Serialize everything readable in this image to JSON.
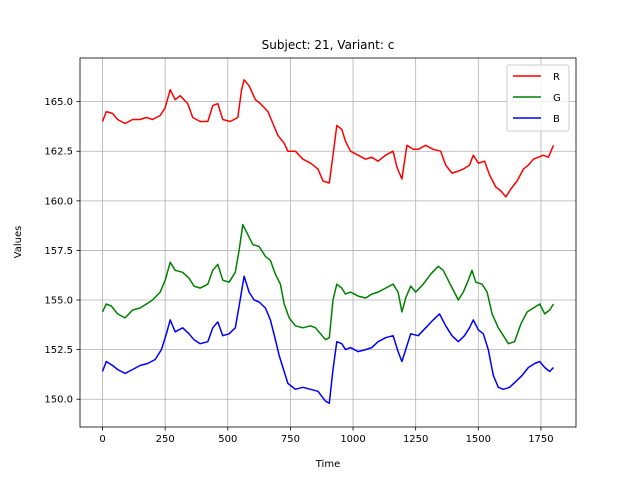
{
  "chart_data": {
    "type": "line",
    "title": "Subject: 21, Variant: c",
    "xlabel": "Time",
    "ylabel": "Values",
    "xlim": [
      -90,
      1890
    ],
    "ylim": [
      148.6,
      167.2
    ],
    "xticks": [
      0,
      250,
      500,
      750,
      1000,
      1250,
      1500,
      1750
    ],
    "yticks": [
      150.0,
      152.5,
      155.0,
      157.5,
      160.0,
      162.5,
      165.0
    ],
    "ytick_labels": [
      "150.0",
      "152.5",
      "155.0",
      "157.5",
      "160.0",
      "162.5",
      "165.0"
    ],
    "grid": true,
    "legend_position": "top-right",
    "series": [
      {
        "name": "R",
        "color": "#ff0000",
        "points": [
          [
            0,
            164.0
          ],
          [
            15,
            164.5
          ],
          [
            40,
            164.4
          ],
          [
            60,
            164.1
          ],
          [
            90,
            163.9
          ],
          [
            120,
            164.1
          ],
          [
            150,
            164.1
          ],
          [
            175,
            164.2
          ],
          [
            200,
            164.1
          ],
          [
            230,
            164.3
          ],
          [
            250,
            164.7
          ],
          [
            270,
            165.6
          ],
          [
            290,
            165.1
          ],
          [
            310,
            165.3
          ],
          [
            340,
            164.9
          ],
          [
            360,
            164.2
          ],
          [
            390,
            164.0
          ],
          [
            420,
            164.0
          ],
          [
            440,
            164.8
          ],
          [
            460,
            164.9
          ],
          [
            480,
            164.1
          ],
          [
            510,
            164.0
          ],
          [
            540,
            164.2
          ],
          [
            555,
            165.6
          ],
          [
            565,
            166.1
          ],
          [
            585,
            165.8
          ],
          [
            610,
            165.1
          ],
          [
            630,
            164.9
          ],
          [
            660,
            164.5
          ],
          [
            680,
            163.9
          ],
          [
            700,
            163.3
          ],
          [
            725,
            162.9
          ],
          [
            740,
            162.5
          ],
          [
            770,
            162.5
          ],
          [
            800,
            162.1
          ],
          [
            830,
            161.9
          ],
          [
            860,
            161.6
          ],
          [
            880,
            161.0
          ],
          [
            905,
            160.9
          ],
          [
            920,
            162.3
          ],
          [
            935,
            163.8
          ],
          [
            955,
            163.6
          ],
          [
            970,
            163.0
          ],
          [
            990,
            162.5
          ],
          [
            1020,
            162.3
          ],
          [
            1050,
            162.1
          ],
          [
            1075,
            162.2
          ],
          [
            1100,
            162.0
          ],
          [
            1130,
            162.3
          ],
          [
            1160,
            162.5
          ],
          [
            1175,
            161.7
          ],
          [
            1195,
            161.1
          ],
          [
            1215,
            162.8
          ],
          [
            1240,
            162.6
          ],
          [
            1260,
            162.6
          ],
          [
            1290,
            162.8
          ],
          [
            1320,
            162.6
          ],
          [
            1350,
            162.5
          ],
          [
            1370,
            161.8
          ],
          [
            1395,
            161.4
          ],
          [
            1420,
            161.5
          ],
          [
            1440,
            161.6
          ],
          [
            1465,
            161.8
          ],
          [
            1480,
            162.3
          ],
          [
            1500,
            161.9
          ],
          [
            1525,
            162.0
          ],
          [
            1545,
            161.3
          ],
          [
            1570,
            160.7
          ],
          [
            1590,
            160.5
          ],
          [
            1610,
            160.2
          ],
          [
            1630,
            160.6
          ],
          [
            1655,
            161.0
          ],
          [
            1680,
            161.6
          ],
          [
            1700,
            161.8
          ],
          [
            1720,
            162.1
          ],
          [
            1740,
            162.2
          ],
          [
            1760,
            162.3
          ],
          [
            1780,
            162.2
          ],
          [
            1800,
            162.8
          ]
        ]
      },
      {
        "name": "G",
        "color": "#008000",
        "points": [
          [
            0,
            154.4
          ],
          [
            15,
            154.8
          ],
          [
            35,
            154.7
          ],
          [
            60,
            154.3
          ],
          [
            90,
            154.1
          ],
          [
            120,
            154.5
          ],
          [
            150,
            154.6
          ],
          [
            175,
            154.8
          ],
          [
            200,
            155.0
          ],
          [
            230,
            155.4
          ],
          [
            250,
            156.0
          ],
          [
            270,
            156.9
          ],
          [
            290,
            156.5
          ],
          [
            320,
            156.4
          ],
          [
            345,
            156.1
          ],
          [
            365,
            155.7
          ],
          [
            390,
            155.6
          ],
          [
            420,
            155.8
          ],
          [
            440,
            156.5
          ],
          [
            460,
            156.8
          ],
          [
            480,
            156.0
          ],
          [
            505,
            155.9
          ],
          [
            530,
            156.4
          ],
          [
            545,
            157.5
          ],
          [
            560,
            158.8
          ],
          [
            580,
            158.3
          ],
          [
            600,
            157.8
          ],
          [
            625,
            157.7
          ],
          [
            650,
            157.2
          ],
          [
            670,
            157.0
          ],
          [
            690,
            156.3
          ],
          [
            710,
            155.8
          ],
          [
            725,
            154.8
          ],
          [
            745,
            154.1
          ],
          [
            770,
            153.7
          ],
          [
            800,
            153.6
          ],
          [
            830,
            153.7
          ],
          [
            850,
            153.6
          ],
          [
            870,
            153.3
          ],
          [
            890,
            153.0
          ],
          [
            905,
            153.1
          ],
          [
            920,
            155.0
          ],
          [
            935,
            155.8
          ],
          [
            955,
            155.6
          ],
          [
            970,
            155.3
          ],
          [
            990,
            155.4
          ],
          [
            1020,
            155.2
          ],
          [
            1050,
            155.1
          ],
          [
            1075,
            155.3
          ],
          [
            1100,
            155.4
          ],
          [
            1130,
            155.6
          ],
          [
            1160,
            155.8
          ],
          [
            1180,
            155.4
          ],
          [
            1195,
            154.4
          ],
          [
            1210,
            155.1
          ],
          [
            1230,
            155.7
          ],
          [
            1250,
            155.4
          ],
          [
            1280,
            155.8
          ],
          [
            1310,
            156.3
          ],
          [
            1340,
            156.7
          ],
          [
            1360,
            156.5
          ],
          [
            1380,
            156.0
          ],
          [
            1400,
            155.5
          ],
          [
            1420,
            155.0
          ],
          [
            1440,
            155.4
          ],
          [
            1460,
            156.0
          ],
          [
            1475,
            156.5
          ],
          [
            1490,
            155.9
          ],
          [
            1515,
            155.8
          ],
          [
            1535,
            155.4
          ],
          [
            1555,
            154.3
          ],
          [
            1580,
            153.6
          ],
          [
            1600,
            153.2
          ],
          [
            1620,
            152.8
          ],
          [
            1645,
            152.9
          ],
          [
            1670,
            153.8
          ],
          [
            1695,
            154.4
          ],
          [
            1720,
            154.6
          ],
          [
            1745,
            154.8
          ],
          [
            1765,
            154.3
          ],
          [
            1785,
            154.5
          ],
          [
            1800,
            154.8
          ]
        ]
      },
      {
        "name": "B",
        "color": "#0000ff",
        "points": [
          [
            0,
            151.4
          ],
          [
            15,
            151.9
          ],
          [
            40,
            151.7
          ],
          [
            60,
            151.5
          ],
          [
            90,
            151.3
          ],
          [
            120,
            151.5
          ],
          [
            150,
            151.7
          ],
          [
            180,
            151.8
          ],
          [
            210,
            152.0
          ],
          [
            235,
            152.5
          ],
          [
            255,
            153.3
          ],
          [
            270,
            154.0
          ],
          [
            290,
            153.4
          ],
          [
            320,
            153.6
          ],
          [
            345,
            153.3
          ],
          [
            365,
            153.0
          ],
          [
            390,
            152.8
          ],
          [
            420,
            152.9
          ],
          [
            440,
            153.6
          ],
          [
            460,
            153.9
          ],
          [
            480,
            153.2
          ],
          [
            505,
            153.3
          ],
          [
            530,
            153.6
          ],
          [
            548,
            154.9
          ],
          [
            565,
            156.2
          ],
          [
            585,
            155.4
          ],
          [
            605,
            155.0
          ],
          [
            625,
            154.9
          ],
          [
            650,
            154.6
          ],
          [
            670,
            154.0
          ],
          [
            690,
            153.0
          ],
          [
            705,
            152.2
          ],
          [
            720,
            151.6
          ],
          [
            740,
            150.8
          ],
          [
            770,
            150.5
          ],
          [
            800,
            150.6
          ],
          [
            830,
            150.5
          ],
          [
            860,
            150.4
          ],
          [
            890,
            149.9
          ],
          [
            905,
            149.8
          ],
          [
            920,
            151.5
          ],
          [
            935,
            152.9
          ],
          [
            955,
            152.8
          ],
          [
            970,
            152.5
          ],
          [
            990,
            152.6
          ],
          [
            1020,
            152.4
          ],
          [
            1050,
            152.5
          ],
          [
            1075,
            152.6
          ],
          [
            1100,
            152.9
          ],
          [
            1130,
            153.1
          ],
          [
            1160,
            153.2
          ],
          [
            1180,
            152.4
          ],
          [
            1195,
            151.9
          ],
          [
            1210,
            152.5
          ],
          [
            1230,
            153.3
          ],
          [
            1260,
            153.2
          ],
          [
            1290,
            153.6
          ],
          [
            1320,
            154.0
          ],
          [
            1345,
            154.3
          ],
          [
            1370,
            153.7
          ],
          [
            1395,
            153.2
          ],
          [
            1420,
            152.9
          ],
          [
            1445,
            153.2
          ],
          [
            1465,
            153.6
          ],
          [
            1480,
            154.0
          ],
          [
            1500,
            153.5
          ],
          [
            1520,
            153.3
          ],
          [
            1540,
            152.5
          ],
          [
            1560,
            151.2
          ],
          [
            1580,
            150.6
          ],
          [
            1600,
            150.5
          ],
          [
            1625,
            150.6
          ],
          [
            1650,
            150.9
          ],
          [
            1675,
            151.2
          ],
          [
            1700,
            151.6
          ],
          [
            1725,
            151.8
          ],
          [
            1745,
            151.9
          ],
          [
            1765,
            151.6
          ],
          [
            1785,
            151.4
          ],
          [
            1800,
            151.6
          ]
        ]
      }
    ]
  }
}
